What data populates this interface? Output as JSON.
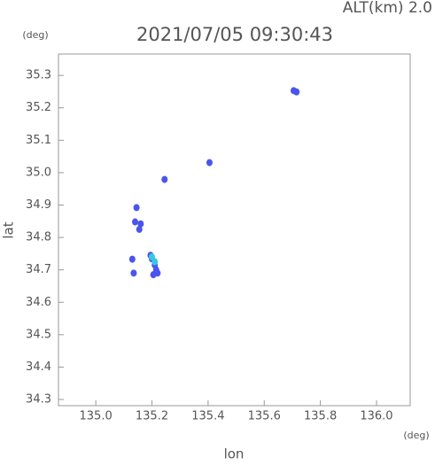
{
  "chart_data": {
    "type": "scatter",
    "title": "2021/07/05 09:30:43",
    "subtitle": "ALT(km) 2.0",
    "x_label": "lon",
    "y_label": "lat",
    "x_unit": "(deg)",
    "y_unit": "(deg)",
    "xlim": [
      134.867,
      136.12
    ],
    "ylim": [
      34.281,
      35.366
    ],
    "xticks": [
      {
        "value": 135.0,
        "label": "135.0"
      },
      135.2,
      135.4,
      135.6,
      135.8,
      {
        "value": 136.0,
        "label": "136.0"
      }
    ],
    "yticks": [
      34.3,
      34.4,
      34.5,
      34.6,
      34.7,
      34.8,
      34.9,
      {
        "value": 35.0,
        "label": "35.0"
      },
      35.1,
      35.2,
      35.3
    ],
    "series": [
      {
        "color": "#4a55ee",
        "x": [
          135.705,
          135.715,
          135.405,
          135.245,
          135.145,
          135.14,
          135.16,
          135.155,
          135.13,
          135.2,
          135.21,
          135.215,
          135.205,
          135.22,
          135.195,
          135.135
        ],
        "y": [
          35.253,
          35.249,
          35.031,
          34.979,
          34.892,
          34.848,
          34.842,
          34.825,
          34.733,
          34.734,
          34.715,
          34.7,
          34.685,
          34.69,
          34.745,
          34.69
        ]
      },
      {
        "color": "#39c6e6",
        "x": [
          135.2,
          135.21
        ],
        "y": [
          34.74,
          34.725
        ]
      }
    ]
  }
}
